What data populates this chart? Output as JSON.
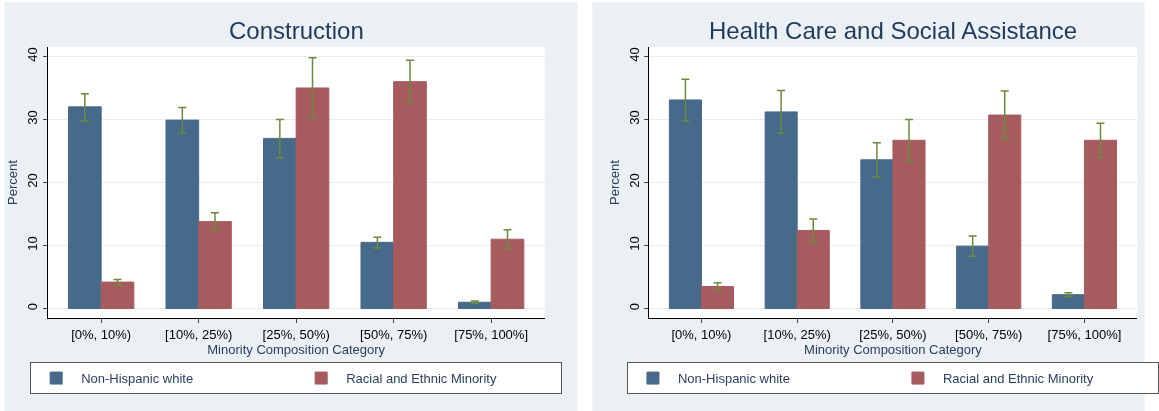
{
  "chart_data": [
    {
      "type": "bar",
      "title": "Construction",
      "xlabel": "Minority Composition Category",
      "ylabel": "Percent",
      "categories": [
        "[0%, 10%)",
        "[10%, 25%)",
        "[25%, 50%)",
        "[50%, 75%)",
        "[75%, 100%]"
      ],
      "series": [
        {
          "name": "Non-Hispanic white",
          "color": "#476a8a",
          "values": [
            32,
            29.9,
            27,
            10.5,
            1
          ],
          "errors": [
            [
              29.8,
              34.1
            ],
            [
              27.8,
              31.9
            ],
            [
              23.9,
              30
            ],
            [
              9.6,
              11.3
            ],
            [
              0.8,
              1.2
            ]
          ]
        },
        {
          "name": "Racial and Ethnic Minority",
          "color": "#a65c5f",
          "values": [
            4.2,
            13.8,
            35,
            36,
            11
          ],
          "errors": [
            [
              3.7,
              4.6
            ],
            [
              12.4,
              15.2
            ],
            [
              30.2,
              39.8
            ],
            [
              32.6,
              39.4
            ],
            [
              9.5,
              12.5
            ]
          ]
        }
      ],
      "ylim": [
        -1.5,
        41.5
      ],
      "yticks": [
        0,
        10,
        20,
        30,
        40
      ],
      "grid": "y",
      "legend": "bottom"
    },
    {
      "type": "bar",
      "title": "Health Care and Social Assistance",
      "xlabel": "Minority Composition Category",
      "ylabel": "Percent",
      "categories": [
        "[0%, 10%)",
        "[10%, 25%)",
        "[25%, 50%)",
        "[50%, 75%)",
        "[75%, 100%]"
      ],
      "series": [
        {
          "name": "Non-Hispanic white",
          "color": "#476a8a",
          "values": [
            33.1,
            31.2,
            23.6,
            9.9,
            2.2
          ],
          "errors": [
            [
              29.8,
              36.4
            ],
            [
              27.8,
              34.6
            ],
            [
              20.9,
              26.3
            ],
            [
              8.3,
              11.5
            ],
            [
              1.9,
              2.5
            ]
          ]
        },
        {
          "name": "Racial and Ethnic Minority",
          "color": "#a65c5f",
          "values": [
            3.5,
            12.4,
            26.7,
            30.7,
            26.7
          ],
          "errors": [
            [
              3,
              4.1
            ],
            [
              10.6,
              14.2
            ],
            [
              23.4,
              30
            ],
            [
              26.9,
              34.5
            ],
            [
              24,
              29.4
            ]
          ]
        }
      ],
      "ylim": [
        -1.5,
        41.5
      ],
      "yticks": [
        0,
        10,
        20,
        30,
        40
      ],
      "grid": "y",
      "legend": "bottom"
    }
  ]
}
